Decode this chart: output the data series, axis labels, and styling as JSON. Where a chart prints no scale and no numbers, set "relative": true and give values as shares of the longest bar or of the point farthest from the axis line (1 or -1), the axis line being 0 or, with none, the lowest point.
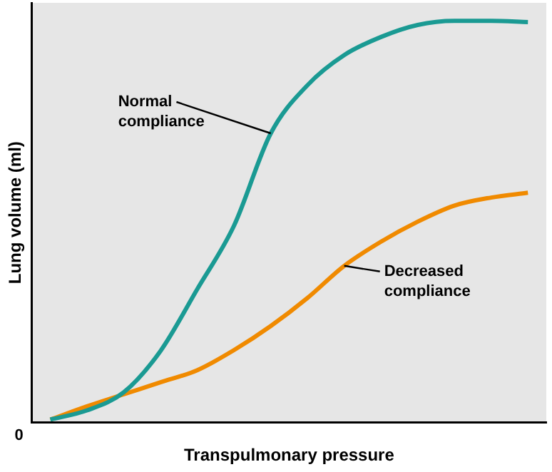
{
  "chart_data": {
    "type": "line",
    "relative": true,
    "xlabel": "Transpulmonary pressure",
    "ylabel": "Lung volume (ml)",
    "categories": [
      null,
      null,
      null,
      null,
      null,
      null,
      null,
      null,
      null,
      null,
      null,
      null,
      null,
      null
    ],
    "series": [
      {
        "color": "#1a9a93",
        "values": [
          0.007,
          0.03,
          0.075,
          0.178,
          0.332,
          0.49,
          0.72,
          0.84,
          0.915,
          0.96,
          0.99,
          1.0,
          1.0,
          0.997
        ]
      },
      {
        "color": "#f08a00",
        "values": [
          0.007,
          0.04,
          0.07,
          0.1,
          0.13,
          0.18,
          0.24,
          0.31,
          0.39,
          0.45,
          0.5,
          0.54,
          0.56,
          0.572
        ]
      }
    ],
    "annotations": [
      "Normal compliance",
      "Decreased compliance",
      "0"
    ],
    "grid": false,
    "legend": false,
    "marker": "none",
    "line_style": "solid"
  }
}
